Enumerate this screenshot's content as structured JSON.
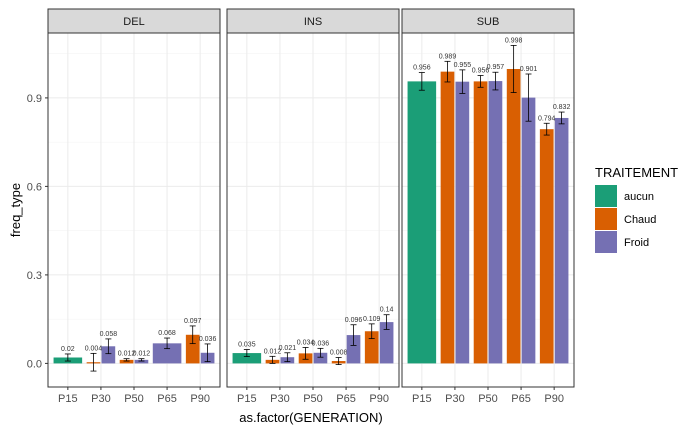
{
  "chart_data": {
    "type": "bar",
    "xlabel": "as.factor(GENERATION)",
    "ylabel": "freq_type",
    "ylim": [
      -0.08,
      1.12
    ],
    "yticks": [
      0.0,
      0.3,
      0.6,
      0.9
    ],
    "ytick_labels": [
      "0.0",
      "0.3",
      "0.6",
      "0.9"
    ],
    "categories": [
      "P15",
      "P30",
      "P50",
      "P65",
      "P90"
    ],
    "grid": true,
    "legend": {
      "title": "TRAITEMENT",
      "placement": "right",
      "entries": [
        {
          "name": "aucun",
          "color": "#1b9e77"
        },
        {
          "name": "Chaud",
          "color": "#d95f02"
        },
        {
          "name": "Froid",
          "color": "#7570b3"
        }
      ]
    },
    "panels": [
      {
        "label": "DEL",
        "bars": [
          {
            "category": "P15",
            "group": "aucun",
            "value": 0.02,
            "label": "0.02",
            "err": 0.012
          },
          {
            "category": "P30",
            "group": "Chaud",
            "value": 0.004,
            "label": "0.004",
            "err": 0.03
          },
          {
            "category": "P30",
            "group": "Froid",
            "value": 0.058,
            "label": "0.058",
            "err": 0.025
          },
          {
            "category": "P50",
            "group": "Chaud",
            "value": 0.012,
            "label": "0.012",
            "err": 0.004
          },
          {
            "category": "P50",
            "group": "Froid",
            "value": 0.012,
            "label": "0.012",
            "err": 0.004
          },
          {
            "category": "P65",
            "group": "Froid",
            "value": 0.068,
            "label": "0.068",
            "err": 0.018
          },
          {
            "category": "P90",
            "group": "Chaud",
            "value": 0.097,
            "label": "0.097",
            "err": 0.03
          },
          {
            "category": "P90",
            "group": "Froid",
            "value": 0.036,
            "label": "0.036",
            "err": 0.03
          }
        ]
      },
      {
        "label": "INS",
        "bars": [
          {
            "category": "P15",
            "group": "aucun",
            "value": 0.035,
            "label": "0.035",
            "err": 0.012
          },
          {
            "category": "P30",
            "group": "Chaud",
            "value": 0.012,
            "label": "0.012",
            "err": 0.012
          },
          {
            "category": "P30",
            "group": "Froid",
            "value": 0.021,
            "label": "0.021",
            "err": 0.015
          },
          {
            "category": "P50",
            "group": "Chaud",
            "value": 0.034,
            "label": "0.034",
            "err": 0.02
          },
          {
            "category": "P50",
            "group": "Froid",
            "value": 0.036,
            "label": "0.036",
            "err": 0.015
          },
          {
            "category": "P65",
            "group": "Chaud",
            "value": 0.008,
            "label": "0.008",
            "err": 0.012
          },
          {
            "category": "P65",
            "group": "Froid",
            "value": 0.096,
            "label": "0.096",
            "err": 0.035
          },
          {
            "category": "P90",
            "group": "Chaud",
            "value": 0.109,
            "label": "0.109",
            "err": 0.025
          },
          {
            "category": "P90",
            "group": "Froid",
            "value": 0.14,
            "label": "0.14",
            "err": 0.025
          }
        ]
      },
      {
        "label": "SUB",
        "bars": [
          {
            "category": "P15",
            "group": "aucun",
            "value": 0.956,
            "label": "0.956",
            "err": 0.03
          },
          {
            "category": "P30",
            "group": "Chaud",
            "value": 0.989,
            "label": "0.989",
            "err": 0.035
          },
          {
            "category": "P30",
            "group": "Froid",
            "value": 0.955,
            "label": "0.955",
            "err": 0.04
          },
          {
            "category": "P50",
            "group": "Chaud",
            "value": 0.956,
            "label": "0.956",
            "err": 0.02
          },
          {
            "category": "P50",
            "group": "Froid",
            "value": 0.957,
            "label": "0.957",
            "err": 0.03
          },
          {
            "category": "P65",
            "group": "Chaud",
            "value": 0.998,
            "label": "0.998",
            "err": 0.08
          },
          {
            "category": "P65",
            "group": "Froid",
            "value": 0.901,
            "label": "0.901",
            "err": 0.08
          },
          {
            "category": "P90",
            "group": "Chaud",
            "value": 0.794,
            "label": "0.794",
            "err": 0.02
          },
          {
            "category": "P90",
            "group": "Froid",
            "value": 0.832,
            "label": "0.832",
            "err": 0.02
          }
        ]
      }
    ]
  }
}
